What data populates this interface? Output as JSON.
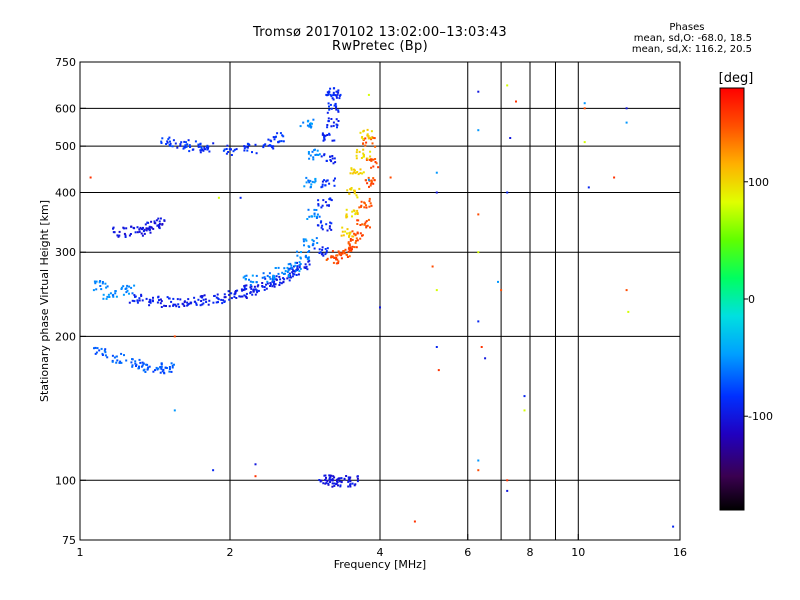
{
  "header": {
    "title": "Tromsø 20170102 13:02:00–13:03:43",
    "subtitle": "RwPretec (Bp)",
    "stats_heading": "Phases",
    "stats_line1": "mean, sd,O: -68.0, 18.5",
    "stats_line2": "mean, sd,X: 116.2, 20.5"
  },
  "colorbar": {
    "unit_label": "[deg]",
    "tick_labels": [
      "100",
      "0",
      "-100"
    ],
    "tick_values": [
      100,
      0,
      -100
    ],
    "range": [
      -180,
      180
    ]
  },
  "chart_data": {
    "type": "scatter",
    "title": "Tromsø 20170102 13:02:00–13:03:43",
    "subtitle": "RwPretec (Bp)",
    "xlabel": "Frequency [MHz]",
    "ylabel": "Stationary phase Virtual Height [km]",
    "xscale": "log",
    "yscale": "log",
    "xlim": [
      1,
      16
    ],
    "ylim": [
      75,
      750
    ],
    "x_ticks": [
      1,
      2,
      4,
      6,
      8,
      10,
      16
    ],
    "x_tick_labels": [
      "1",
      "2",
      "4",
      "6",
      "8",
      "10",
      "16"
    ],
    "x_grid": [
      2,
      4,
      6,
      7,
      8,
      9,
      10
    ],
    "y_ticks": [
      75,
      100,
      200,
      300,
      400,
      500,
      600,
      750
    ],
    "y_tick_labels": [
      "75",
      "100",
      "200",
      "300",
      "400",
      "500",
      "600",
      "750"
    ],
    "y_grid": [
      100,
      200,
      300,
      400,
      500,
      600
    ],
    "color_quantity": "phase [deg]",
    "series": [
      {
        "name": "F-trace (blue)",
        "phase": -95,
        "points": [
          [
            1.3,
            240
          ],
          [
            1.4,
            237
          ],
          [
            1.5,
            236
          ],
          [
            1.6,
            236
          ],
          [
            1.7,
            237
          ],
          [
            1.8,
            238
          ],
          [
            1.9,
            240
          ],
          [
            2.0,
            243
          ],
          [
            2.1,
            246
          ],
          [
            2.2,
            250
          ],
          [
            2.3,
            254
          ],
          [
            2.4,
            258
          ],
          [
            2.5,
            262
          ],
          [
            2.6,
            268
          ],
          [
            2.7,
            274
          ],
          [
            2.8,
            282
          ]
        ]
      },
      {
        "name": "F-trace (cyan)",
        "phase": -55,
        "points": [
          [
            1.1,
            255
          ],
          [
            1.15,
            245
          ],
          [
            1.25,
            250
          ],
          [
            2.2,
            262
          ],
          [
            2.4,
            266
          ],
          [
            2.55,
            272
          ],
          [
            2.7,
            280
          ],
          [
            2.8,
            295
          ],
          [
            2.9,
            315
          ],
          [
            2.95,
            360
          ],
          [
            2.9,
            420
          ],
          [
            2.95,
            480
          ],
          [
            2.85,
            560
          ]
        ]
      },
      {
        "name": "O-mode cusp (blue)",
        "phase": -90,
        "points": [
          [
            3.05,
            300
          ],
          [
            3.1,
            340
          ],
          [
            3.1,
            380
          ],
          [
            3.15,
            420
          ],
          [
            3.15,
            470
          ],
          [
            3.15,
            520
          ],
          [
            3.2,
            560
          ],
          [
            3.2,
            600
          ],
          [
            3.25,
            640
          ],
          [
            3.2,
            650
          ]
        ]
      },
      {
        "name": "X-mode cusp (red)",
        "phase": 150,
        "points": [
          [
            3.2,
            290
          ],
          [
            3.3,
            295
          ],
          [
            3.4,
            300
          ],
          [
            3.5,
            310
          ],
          [
            3.6,
            325
          ],
          [
            3.7,
            345
          ],
          [
            3.75,
            380
          ],
          [
            3.8,
            420
          ],
          [
            3.85,
            460
          ],
          [
            3.8,
            510
          ]
        ]
      },
      {
        "name": "X-mode cusp (yellow)",
        "phase": 100,
        "points": [
          [
            3.45,
            330
          ],
          [
            3.5,
            360
          ],
          [
            3.55,
            400
          ],
          [
            3.6,
            440
          ],
          [
            3.7,
            480
          ],
          [
            3.75,
            530
          ]
        ]
      },
      {
        "name": "upper trace 500 km",
        "phase": -85,
        "points": [
          [
            1.5,
            510
          ],
          [
            1.6,
            505
          ],
          [
            1.7,
            500
          ],
          [
            1.8,
            495
          ],
          [
            2.0,
            490
          ],
          [
            2.2,
            495
          ],
          [
            2.4,
            505
          ],
          [
            2.5,
            520
          ]
        ]
      },
      {
        "name": "trace 330 km",
        "phase": -100,
        "points": [
          [
            1.2,
            330
          ],
          [
            1.3,
            332
          ],
          [
            1.35,
            335
          ],
          [
            1.4,
            340
          ],
          [
            1.45,
            345
          ]
        ]
      },
      {
        "name": "low trace 175 km",
        "phase": -70,
        "points": [
          [
            1.1,
            185
          ],
          [
            1.2,
            180
          ],
          [
            1.3,
            175
          ],
          [
            1.35,
            172
          ],
          [
            1.45,
            170
          ],
          [
            1.5,
            172
          ]
        ]
      },
      {
        "name": "E-layer 100 km",
        "phase": -100,
        "points": [
          [
            3.1,
            100
          ],
          [
            3.2,
            100
          ],
          [
            3.3,
            99
          ],
          [
            3.4,
            99
          ],
          [
            3.5,
            100
          ]
        ]
      },
      {
        "name": "scattered noise",
        "phase": 0,
        "points": [
          [
            5.2,
            400
          ],
          [
            5.2,
            440
          ],
          [
            5.1,
            280
          ],
          [
            5.2,
            250
          ],
          [
            5.2,
            190
          ],
          [
            5.25,
            170
          ],
          [
            6.3,
            650
          ],
          [
            6.3,
            540
          ],
          [
            6.3,
            360
          ],
          [
            6.3,
            300
          ],
          [
            6.3,
            215
          ],
          [
            6.4,
            190
          ],
          [
            6.5,
            180
          ],
          [
            6.3,
            110
          ],
          [
            6.3,
            105
          ],
          [
            7.2,
            670
          ],
          [
            7.2,
            400
          ],
          [
            7.5,
            620
          ],
          [
            7.3,
            520
          ],
          [
            6.9,
            260
          ],
          [
            7.0,
            250
          ],
          [
            7.8,
            140
          ],
          [
            7.8,
            150
          ],
          [
            7.2,
            100
          ],
          [
            7.2,
            95
          ],
          [
            10.3,
            615
          ],
          [
            10.3,
            600
          ],
          [
            10.3,
            510
          ],
          [
            10.5,
            410
          ],
          [
            11.8,
            430
          ],
          [
            12.5,
            600
          ],
          [
            12.5,
            560
          ],
          [
            12.5,
            250
          ],
          [
            12.6,
            225
          ],
          [
            15.5,
            80
          ],
          [
            4.7,
            82
          ],
          [
            4.0,
            230
          ],
          [
            3.8,
            425
          ],
          [
            4.2,
            430
          ],
          [
            3.8,
            640
          ],
          [
            1.85,
            105
          ],
          [
            2.25,
            102
          ],
          [
            2.25,
            108
          ],
          [
            1.55,
            140
          ],
          [
            1.55,
            200
          ],
          [
            1.9,
            390
          ],
          [
            2.1,
            390
          ],
          [
            1.05,
            430
          ]
        ]
      }
    ]
  }
}
